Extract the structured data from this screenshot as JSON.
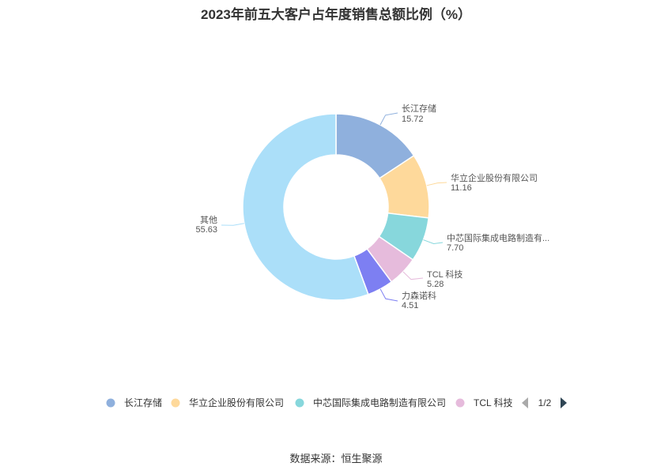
{
  "title": "2023年前五大客户占年度销售总额比例（%）",
  "source": "数据来源：恒生聚源",
  "legend_page": "1/2",
  "chart_data": {
    "type": "pie",
    "title": "2023年前五大客户占年度销售总额比例（%）",
    "donut": true,
    "categories": [
      "长江存储",
      "华立企业股份有限公司",
      "中芯国际集成电路制造有限公司",
      "TCL 科技",
      "力森诺科",
      "其他"
    ],
    "values": [
      15.72,
      11.16,
      7.7,
      5.28,
      4.51,
      55.63
    ],
    "slice_labels": [
      "长江存储",
      "华立企业股份有限公司",
      "中芯国际集成电路制造有...",
      "TCL 科技",
      "力森诺科",
      "其他"
    ],
    "value_labels": [
      "15.72",
      "11.16",
      "7.70",
      "5.28",
      "4.51",
      "55.63"
    ],
    "colors": [
      "#8fb0dd",
      "#fed99b",
      "#87d7dc",
      "#e6bbdc",
      "#7d7ff2",
      "#abdff9"
    ],
    "legend_visible": [
      "长江存储",
      "华立企业股份有限公司",
      "中芯国际集成电路制造有限公司",
      "TCL 科技"
    ],
    "legend_position": "bottom"
  }
}
